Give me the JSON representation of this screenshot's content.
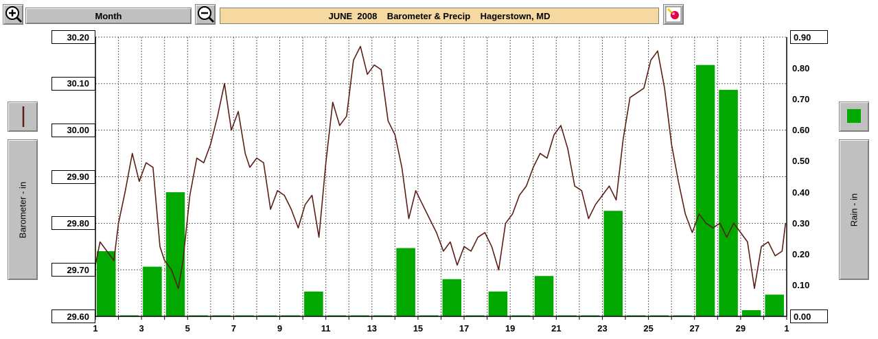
{
  "toolbar": {
    "zoom_in_icon": "zoom-in-magnifier-icon",
    "zoom_out_icon": "zoom-out-magnifier-icon",
    "period_label": "Month",
    "title": "JUNE  2008    Barometer & Precip    Hagerstown, MD",
    "tool_icon": "paint-brush-icon"
  },
  "legend": {
    "left_label": "Barometer - in",
    "right_label": "Rain - in",
    "barometer_color": "#5a1e14",
    "rain_color": "#00a800"
  },
  "chart_data": {
    "type": "bar+line",
    "title": "JUNE  2008    Barometer & Precip    Hagerstown, MD",
    "x_ticks": [
      "1",
      "3",
      "5",
      "7",
      "9",
      "11",
      "13",
      "15",
      "17",
      "19",
      "21",
      "23",
      "25",
      "27",
      "29",
      "1"
    ],
    "x_tick_days": [
      1,
      3,
      5,
      7,
      9,
      11,
      13,
      15,
      17,
      19,
      21,
      23,
      25,
      27,
      29,
      31
    ],
    "xlim": [
      1,
      31
    ],
    "left_axis": {
      "label": "Barometer - in",
      "ylim": [
        29.6,
        30.2
      ],
      "ticks": [
        "30.20",
        "30.10",
        "30.00",
        "29.90",
        "29.80",
        "29.70",
        "29.60"
      ],
      "tick_values": [
        30.2,
        30.1,
        30.0,
        29.9,
        29.8,
        29.7,
        29.6
      ]
    },
    "right_axis": {
      "label": "Rain - in",
      "ylim": [
        0.0,
        0.9
      ],
      "ticks": [
        "0.90",
        "0.80",
        "0.70",
        "0.60",
        "0.50",
        "0.40",
        "0.30",
        "0.20",
        "0.10",
        "0.00"
      ],
      "tick_values": [
        0.9,
        0.8,
        0.7,
        0.6,
        0.5,
        0.4,
        0.3,
        0.2,
        0.1,
        0.0
      ]
    },
    "grid": true,
    "rain_series": {
      "name": "Rain - in",
      "days": [
        1,
        2,
        3,
        4,
        5,
        6,
        7,
        8,
        9,
        10,
        11,
        12,
        13,
        14,
        15,
        16,
        17,
        18,
        19,
        20,
        21,
        22,
        23,
        24,
        25,
        26,
        27,
        28,
        29,
        30
      ],
      "values": [
        0.21,
        0.0,
        0.16,
        0.4,
        0.0,
        0.0,
        0.0,
        0.0,
        0.0,
        0.08,
        0.0,
        0.0,
        0.0,
        0.22,
        0.0,
        0.12,
        0.0,
        0.08,
        0.0,
        0.13,
        0.0,
        0.0,
        0.34,
        0.0,
        0.0,
        0.0,
        0.81,
        0.73,
        0.02,
        0.07
      ]
    },
    "barometer_series": {
      "name": "Barometer - in",
      "time_days": [
        1.0,
        1.2,
        1.5,
        1.8,
        2.0,
        2.3,
        2.6,
        2.9,
        3.2,
        3.5,
        3.8,
        4.0,
        4.3,
        4.6,
        4.8,
        5.1,
        5.4,
        5.7,
        6.0,
        6.3,
        6.6,
        6.9,
        7.2,
        7.5,
        7.7,
        8.0,
        8.3,
        8.6,
        8.9,
        9.2,
        9.5,
        9.8,
        10.1,
        10.4,
        10.7,
        11.0,
        11.3,
        11.6,
        11.9,
        12.2,
        12.5,
        12.8,
        13.1,
        13.4,
        13.7,
        14.0,
        14.3,
        14.6,
        14.9,
        15.2,
        15.5,
        15.8,
        16.1,
        16.4,
        16.7,
        17.0,
        17.3,
        17.6,
        17.9,
        18.2,
        18.5,
        18.8,
        19.1,
        19.4,
        19.7,
        20.0,
        20.3,
        20.6,
        20.9,
        21.2,
        21.5,
        21.8,
        22.1,
        22.4,
        22.7,
        23.0,
        23.3,
        23.6,
        23.9,
        24.2,
        24.5,
        24.8,
        25.1,
        25.4,
        25.7,
        26.0,
        26.3,
        26.6,
        26.9,
        27.2,
        27.5,
        27.8,
        28.1,
        28.4,
        28.7,
        29.0,
        29.3,
        29.6,
        29.9,
        30.2,
        30.5,
        30.8,
        30.95
      ],
      "values": [
        29.71,
        29.76,
        29.74,
        29.72,
        29.8,
        29.87,
        29.95,
        29.89,
        29.93,
        29.92,
        29.75,
        29.72,
        29.7,
        29.66,
        29.72,
        29.86,
        29.94,
        29.93,
        29.97,
        30.03,
        30.1,
        30.0,
        30.04,
        29.95,
        29.92,
        29.94,
        29.93,
        29.83,
        29.87,
        29.86,
        29.83,
        29.79,
        29.84,
        29.86,
        29.77,
        29.93,
        30.06,
        30.01,
        30.03,
        30.15,
        30.18,
        30.12,
        30.14,
        30.13,
        30.02,
        29.99,
        29.92,
        29.81,
        29.87,
        29.84,
        29.81,
        29.78,
        29.74,
        29.76,
        29.71,
        29.75,
        29.74,
        29.77,
        29.78,
        29.75,
        29.7,
        29.8,
        29.82,
        29.86,
        29.88,
        29.92,
        29.95,
        29.94,
        29.99,
        30.01,
        29.96,
        29.88,
        29.87,
        29.81,
        29.84,
        29.86,
        29.88,
        29.85,
        29.98,
        30.07,
        30.08,
        30.09,
        30.15,
        30.17,
        30.09,
        29.97,
        29.89,
        29.82,
        29.78,
        29.82,
        29.8,
        29.79,
        29.8,
        29.77,
        29.8,
        29.78,
        29.76,
        29.66,
        29.75,
        29.76,
        29.73,
        29.74,
        29.8
      ]
    }
  }
}
